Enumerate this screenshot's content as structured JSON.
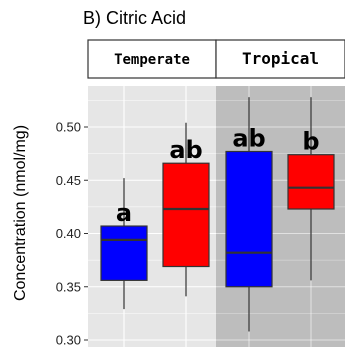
{
  "chart_data": {
    "type": "boxplot",
    "title": "B) Citric Acid",
    "ylabel": "Concentration (nmol/mg)",
    "ylim": [
      0.3,
      0.535
    ],
    "yticks": [
      0.3,
      0.35,
      0.4,
      0.45,
      0.5
    ],
    "ytick_labels": [
      "0.30",
      "0.35",
      "0.40",
      "0.45",
      "0.50"
    ],
    "facets": [
      {
        "label": "Temperate",
        "background": "#e6e6e6"
      },
      {
        "label": "Tropical",
        "background": "#bdbdbd"
      }
    ],
    "boxes": [
      {
        "facet": 0,
        "color": "#0000ff",
        "whisker_low": 0.329,
        "q1": 0.356,
        "median": 0.394,
        "q3": 0.407,
        "whisker_high": 0.452,
        "label": "a"
      },
      {
        "facet": 0,
        "color": "#ff0000",
        "whisker_low": 0.341,
        "q1": 0.369,
        "median": 0.423,
        "q3": 0.466,
        "whisker_high": 0.504,
        "label": "ab"
      },
      {
        "facet": 1,
        "color": "#0000ff",
        "whisker_low": 0.308,
        "q1": 0.35,
        "median": 0.382,
        "q3": 0.477,
        "whisker_high": 0.528,
        "label": "ab"
      },
      {
        "facet": 1,
        "color": "#ff0000",
        "whisker_low": 0.356,
        "q1": 0.423,
        "median": 0.443,
        "q3": 0.474,
        "whisker_high": 0.528,
        "label": "b"
      }
    ]
  }
}
